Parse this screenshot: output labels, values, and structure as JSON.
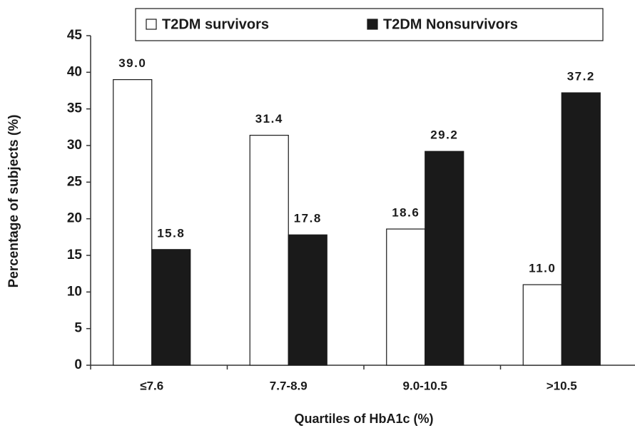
{
  "chart_data": {
    "type": "bar",
    "y_label": "Percentage of subjects (%)",
    "x_label": "Quartiles of HbA1c (%)",
    "categories": [
      "≤7.6",
      "7.7-8.9",
      "9.0-10.5",
      ">10.5"
    ],
    "series": [
      {
        "name": "T2DM survivors",
        "color": "#ffffff",
        "values": [
          39.0,
          31.4,
          18.6,
          11.0
        ],
        "value_labels": [
          "39.0",
          "31.4",
          "18.6",
          "11.0"
        ]
      },
      {
        "name": "T2DM Nonsurvivors",
        "color": "#1a1a1a",
        "values": [
          15.8,
          17.8,
          29.2,
          37.2
        ],
        "value_labels": [
          "15.8",
          "17.8",
          "29.2",
          "37.2"
        ]
      }
    ],
    "ylim": [
      0,
      45
    ],
    "yticks": [
      0,
      5,
      10,
      15,
      20,
      25,
      30,
      35,
      40,
      45
    ],
    "legend": "top"
  }
}
